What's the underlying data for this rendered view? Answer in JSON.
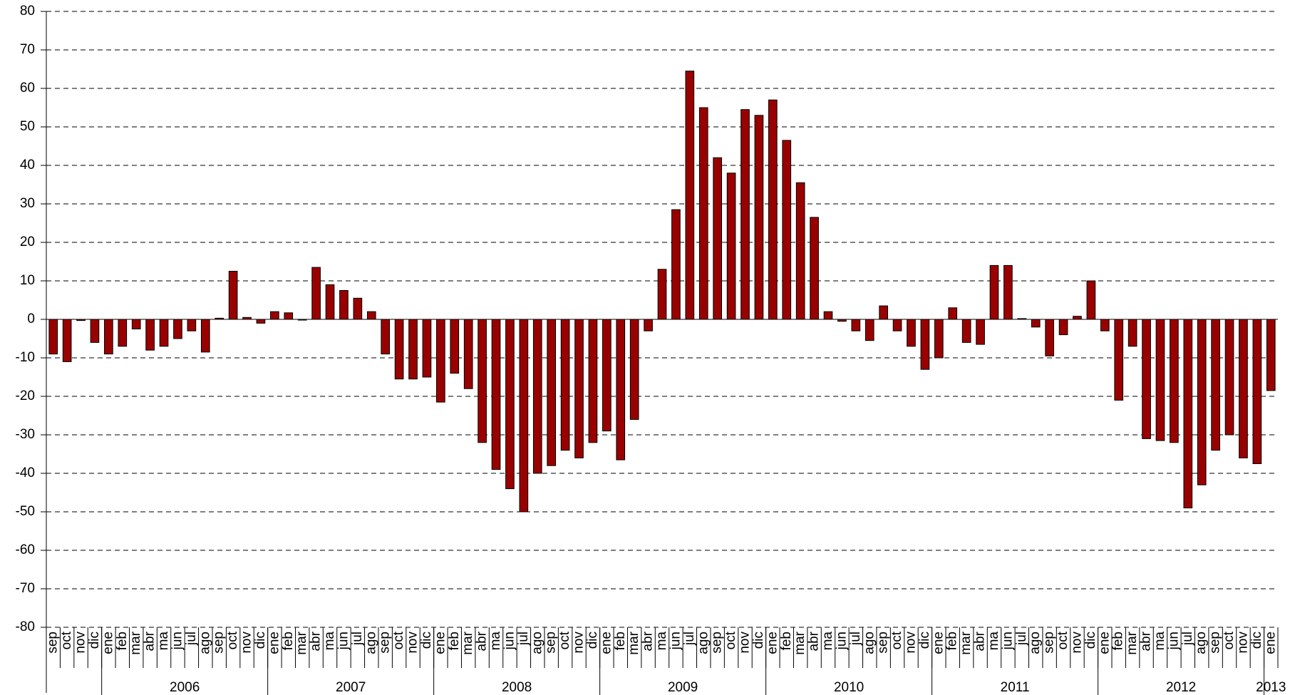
{
  "chart_data": {
    "type": "bar",
    "categories": [
      "sep",
      "oct",
      "nov",
      "dic",
      "ene",
      "feb",
      "mar",
      "abr",
      "ma",
      "jun",
      "jul",
      "ago",
      "sep",
      "oct",
      "nov",
      "dic",
      "ene",
      "feb",
      "mar",
      "abr",
      "ma",
      "jun",
      "jul",
      "ago",
      "sep",
      "oct",
      "nov",
      "dic",
      "ene",
      "feb",
      "mar",
      "abr",
      "ma",
      "jun",
      "jul",
      "ago",
      "sep",
      "oct",
      "nov",
      "dic",
      "ene",
      "feb",
      "mar",
      "abr",
      "ma",
      "jun",
      "jul",
      "ago",
      "sep",
      "oct",
      "nov",
      "dic",
      "ene",
      "feb",
      "mar",
      "abr",
      "ma",
      "jun",
      "jul",
      "ago",
      "sep",
      "oct",
      "nov",
      "dic",
      "ene",
      "feb",
      "mar",
      "abr",
      "ma",
      "jun",
      "jul",
      "ago",
      "sep",
      "oct",
      "nov",
      "dic",
      "ene",
      "feb",
      "mar",
      "abr",
      "ma",
      "jun",
      "jul",
      "ago",
      "sep",
      "oct",
      "nov",
      "dic",
      "ene"
    ],
    "years": [
      "2006",
      "2007",
      "2008",
      "2009",
      "2010",
      "2011",
      "2012",
      "2013"
    ],
    "values": [
      -9,
      -11,
      -0.3,
      -6,
      -9,
      -7,
      -2.5,
      -8,
      -7,
      -5,
      -3,
      -8.5,
      0.3,
      12.5,
      0.5,
      -1,
      2,
      1.7,
      -0.2,
      13.5,
      9,
      7.5,
      5.5,
      2,
      -9,
      -15.5,
      -15.5,
      -15,
      -21.5,
      -14,
      -18,
      -32,
      -39,
      -44,
      -50,
      -40,
      -38,
      -34,
      -36,
      -32,
      -29,
      -36.5,
      -26,
      -3,
      13,
      28.5,
      64.5,
      55,
      42,
      38,
      54.5,
      53,
      57,
      46.5,
      35.5,
      26.5,
      2,
      -0.5,
      -3,
      -5.5,
      3.5,
      -3,
      -7,
      -13,
      -10,
      3,
      -6,
      -6.5,
      14,
      14,
      0.2,
      -2,
      -9.5,
      -4,
      0.8,
      10,
      -3,
      -21,
      -7,
      -31,
      -31.5,
      -32,
      -49,
      -43,
      -34,
      -30,
      -36,
      -37.5,
      -18.5
    ],
    "color": "#990000",
    "ylim": [
      -80,
      80
    ],
    "yticks": [
      -80,
      -70,
      -60,
      -50,
      -40,
      -30,
      -20,
      -10,
      0,
      10,
      20,
      30,
      40,
      50,
      60,
      70,
      80
    ],
    "grid": true
  }
}
